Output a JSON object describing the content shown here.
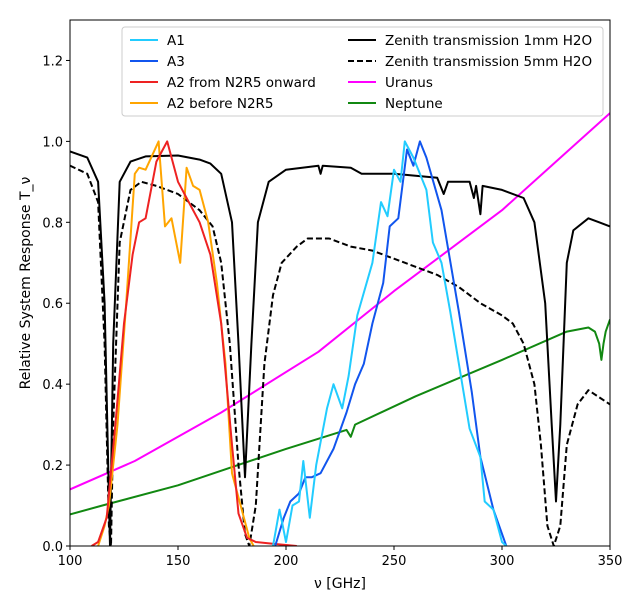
{
  "chart_data": {
    "type": "line",
    "title": "",
    "xlabel": "ν [GHz]",
    "ylabel": "Relative System Response T_ν",
    "xlim": [
      100,
      350
    ],
    "ylim": [
      0,
      1.3
    ],
    "xticks": [
      100,
      150,
      200,
      250,
      300,
      350
    ],
    "xtick_labels": [
      "100",
      "150",
      "200",
      "250",
      "300",
      "350"
    ],
    "yticks": [
      0,
      0.2,
      0.4,
      0.6,
      0.8,
      1.0,
      1.2
    ],
    "ytick_labels": [
      "0.0",
      "0.2",
      "0.4",
      "0.6",
      "0.8",
      "1.0",
      "1.2"
    ],
    "grid": false,
    "legend_placement": "top-right",
    "series": [
      {
        "name": "A1",
        "color": "#22ccff",
        "dash": false,
        "x": [
          194,
          197,
          200,
          203,
          206,
          208,
          211,
          214,
          219,
          222,
          226,
          229,
          233,
          240,
          244,
          247,
          250,
          253,
          255,
          259,
          265,
          268,
          272,
          276,
          285,
          290,
          292,
          296,
          300,
          302
        ],
        "y": [
          0,
          0.09,
          0.01,
          0.1,
          0.11,
          0.21,
          0.07,
          0.2,
          0.34,
          0.4,
          0.34,
          0.42,
          0.57,
          0.7,
          0.85,
          0.815,
          0.93,
          0.9,
          1.0,
          0.96,
          0.88,
          0.75,
          0.7,
          0.58,
          0.29,
          0.22,
          0.11,
          0.09,
          0.01,
          0
        ]
      },
      {
        "name": "A3",
        "color": "#1155ee",
        "dash": false,
        "x": [
          195,
          199,
          202,
          206,
          209,
          212,
          216,
          222,
          228,
          232,
          236,
          240,
          245,
          248,
          252,
          256,
          259,
          262,
          265,
          272,
          280,
          286,
          290,
          296,
          302
        ],
        "y": [
          0,
          0.07,
          0.11,
          0.13,
          0.17,
          0.17,
          0.18,
          0.24,
          0.33,
          0.4,
          0.45,
          0.55,
          0.65,
          0.79,
          0.81,
          0.98,
          0.94,
          1.0,
          0.96,
          0.83,
          0.58,
          0.38,
          0.22,
          0.09,
          0
        ]
      },
      {
        "name": "A2 from N2R5 onward",
        "color": "#ee2222",
        "dash": false,
        "x": [
          110,
          113,
          117,
          121,
          125,
          129,
          132,
          135,
          140,
          145,
          150,
          155,
          160,
          165,
          170,
          175,
          178,
          182,
          186,
          195,
          205
        ],
        "y": [
          0,
          0.01,
          0.07,
          0.3,
          0.55,
          0.72,
          0.8,
          0.81,
          0.95,
          1.0,
          0.9,
          0.85,
          0.8,
          0.72,
          0.55,
          0.25,
          0.08,
          0.02,
          0.01,
          0.005,
          0
        ]
      },
      {
        "name": "A2 before N2R5",
        "color": "#ffa500",
        "dash": false,
        "x": [
          113,
          116,
          118,
          122,
          126,
          130,
          132,
          135,
          141,
          144,
          147,
          151,
          154,
          157,
          160,
          164,
          168,
          172,
          175,
          180,
          183,
          185
        ],
        "y": [
          0,
          0.05,
          0.1,
          0.3,
          0.6,
          0.92,
          0.935,
          0.93,
          1.0,
          0.79,
          0.81,
          0.7,
          0.935,
          0.89,
          0.88,
          0.8,
          0.65,
          0.45,
          0.18,
          0.08,
          0.02,
          0
        ]
      },
      {
        "name": "Zenith transmission 1mm H2O",
        "color": "#000000",
        "dash": false,
        "x": [
          100,
          108,
          113,
          116,
          118.5,
          120,
          123,
          128,
          135,
          150,
          160,
          165,
          170,
          175,
          178,
          181,
          184,
          187,
          192,
          200,
          215,
          216,
          217,
          230,
          235,
          250,
          270,
          273,
          275,
          285,
          287,
          288,
          290,
          291,
          300,
          310,
          315,
          320,
          323,
          325,
          327,
          330,
          333,
          340,
          345,
          350
        ],
        "y": [
          0.975,
          0.96,
          0.9,
          0.6,
          0,
          0.5,
          0.9,
          0.95,
          0.963,
          0.965,
          0.955,
          0.945,
          0.92,
          0.8,
          0.5,
          0.17,
          0.5,
          0.8,
          0.9,
          0.93,
          0.94,
          0.92,
          0.94,
          0.935,
          0.92,
          0.92,
          0.91,
          0.87,
          0.9,
          0.9,
          0.86,
          0.89,
          0.82,
          0.89,
          0.88,
          0.86,
          0.8,
          0.6,
          0.3,
          0.11,
          0.3,
          0.7,
          0.78,
          0.81,
          0.8,
          0.79
        ]
      },
      {
        "name": "Zenith transmission 5mm H2O",
        "color": "#000000",
        "dash": true,
        "x": [
          100,
          108,
          113,
          116,
          118,
          119,
          120,
          123,
          128,
          133,
          140,
          150,
          160,
          166,
          170,
          174,
          178,
          181,
          183,
          186,
          190,
          194,
          198,
          205,
          210,
          220,
          230,
          240,
          250,
          260,
          270,
          280,
          290,
          300,
          305,
          310,
          315,
          318,
          321,
          324,
          327,
          330,
          335,
          340,
          350
        ],
        "y": [
          0.94,
          0.92,
          0.85,
          0.5,
          0.05,
          0,
          0.3,
          0.75,
          0.88,
          0.9,
          0.89,
          0.87,
          0.83,
          0.79,
          0.7,
          0.5,
          0.2,
          0.03,
          0,
          0.1,
          0.45,
          0.62,
          0.7,
          0.74,
          0.76,
          0.76,
          0.74,
          0.73,
          0.71,
          0.69,
          0.67,
          0.64,
          0.6,
          0.57,
          0.55,
          0.5,
          0.4,
          0.25,
          0.05,
          0,
          0.05,
          0.25,
          0.35,
          0.385,
          0.35
        ]
      },
      {
        "name": "Uranus",
        "color": "#ff00ff",
        "dash": false,
        "x": [
          100,
          130,
          170,
          215,
          250,
          300,
          325,
          350
        ],
        "y": [
          0.14,
          0.21,
          0.33,
          0.48,
          0.63,
          0.83,
          0.95,
          1.07
        ]
      },
      {
        "name": "Neptune",
        "color": "#118811",
        "dash": false,
        "x": [
          100,
          115,
          150,
          200,
          228,
          230,
          232,
          260,
          300,
          330,
          340,
          343,
          345,
          346,
          347,
          348,
          350
        ],
        "y": [
          0.078,
          0.1,
          0.15,
          0.24,
          0.287,
          0.27,
          0.3,
          0.37,
          0.46,
          0.53,
          0.54,
          0.53,
          0.5,
          0.46,
          0.5,
          0.53,
          0.56
        ]
      }
    ]
  }
}
